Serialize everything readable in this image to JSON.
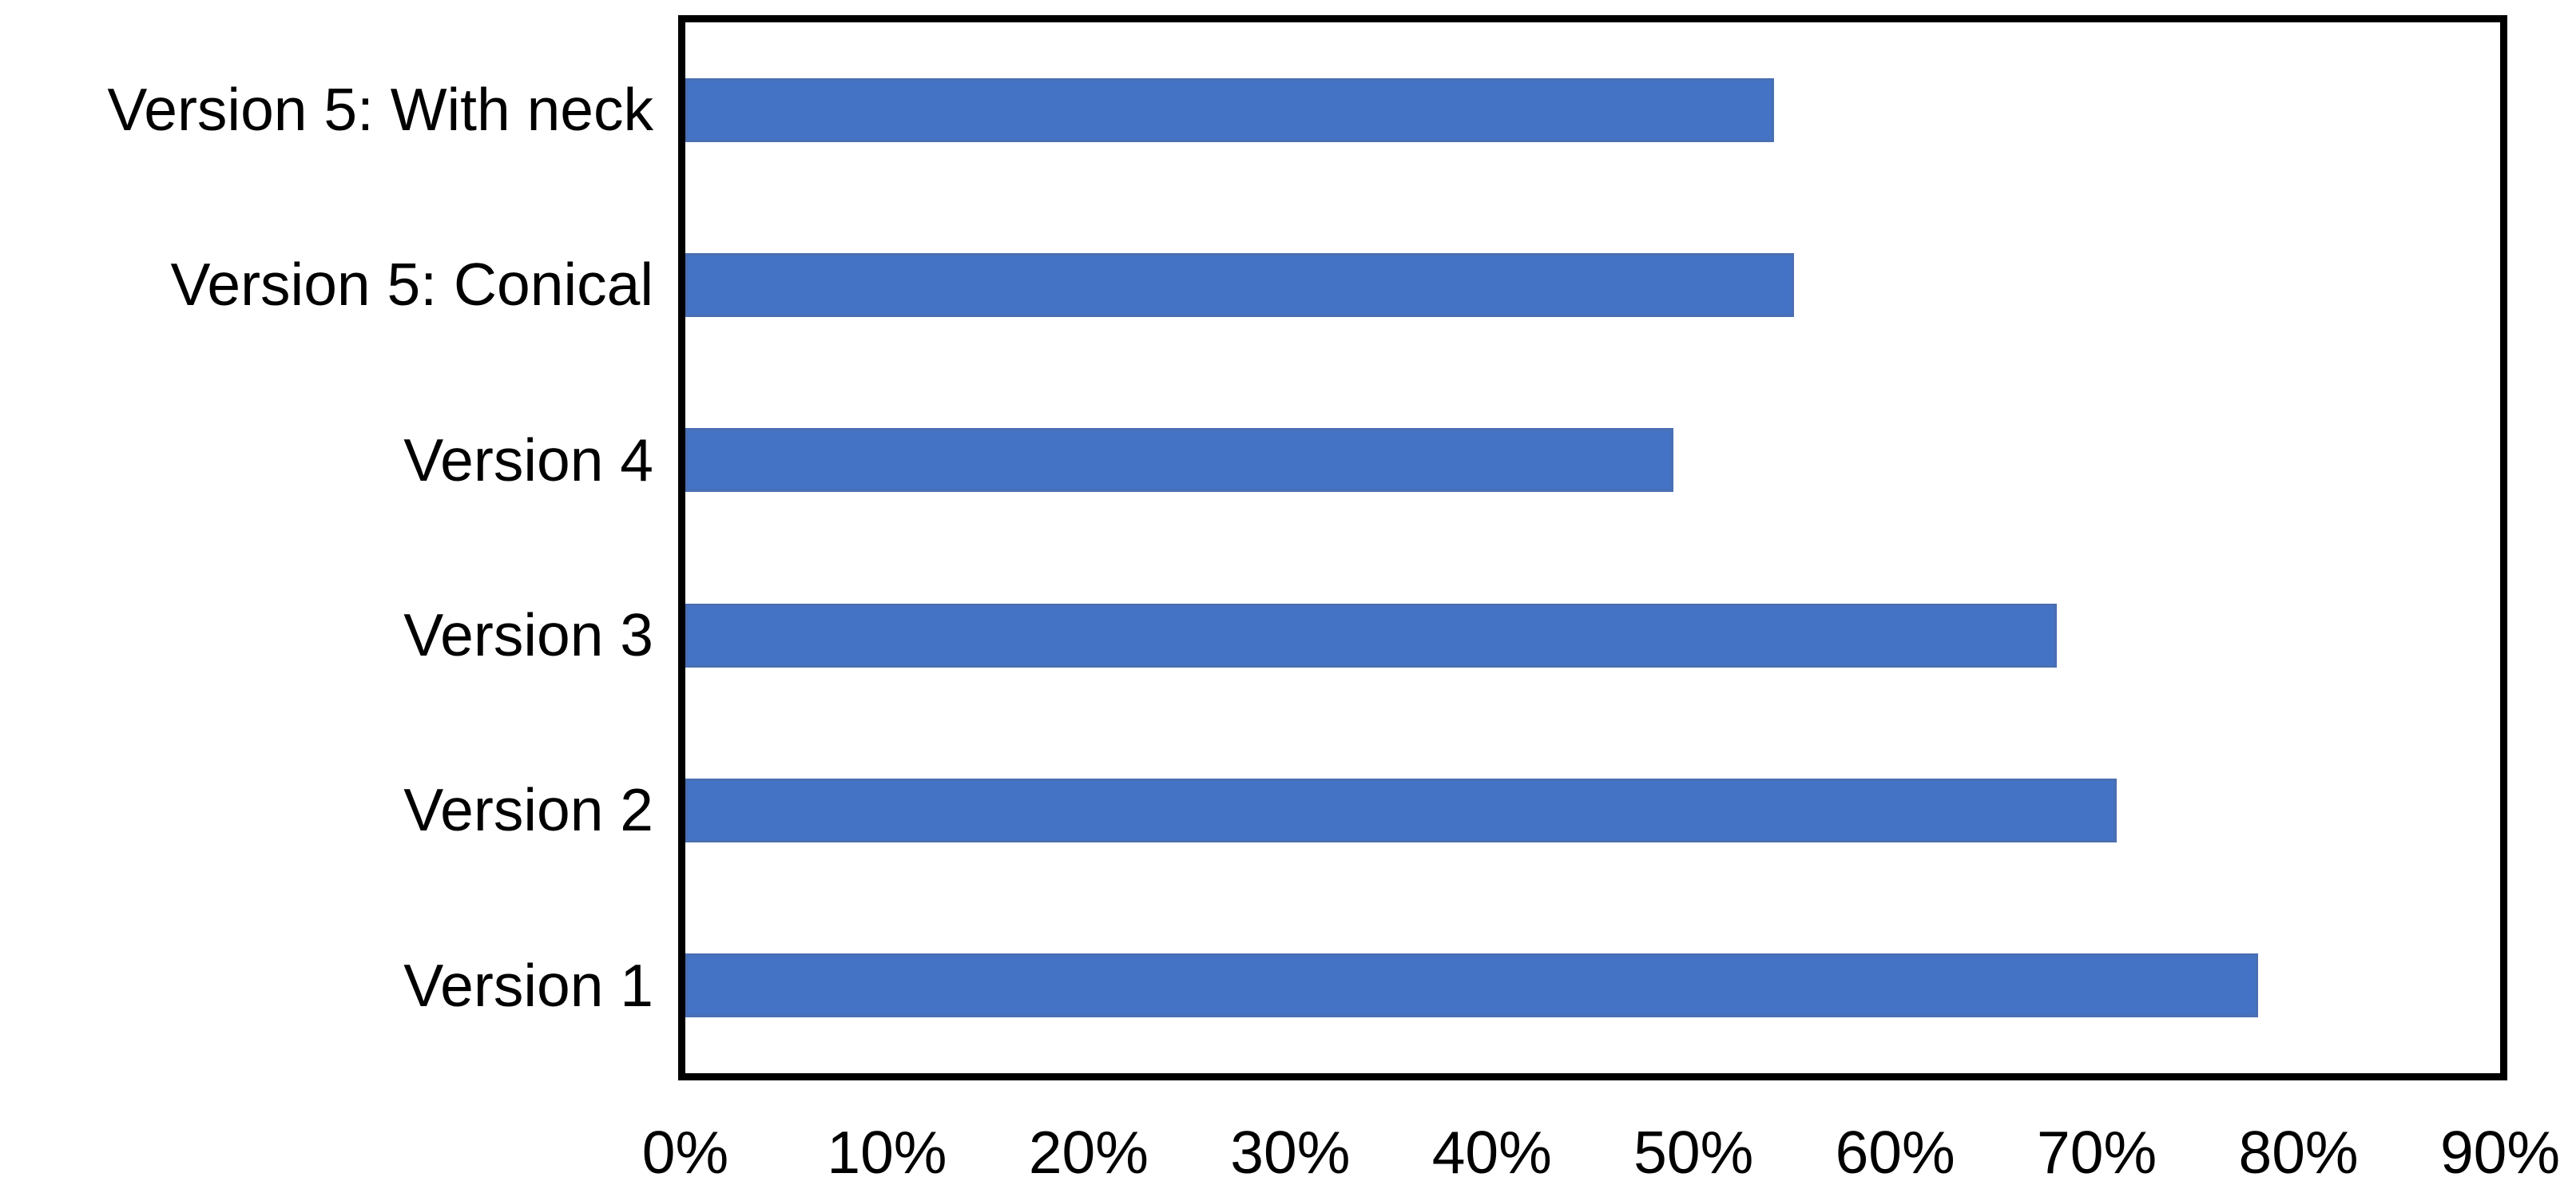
{
  "chart_data": {
    "type": "bar",
    "orientation": "horizontal",
    "title": "",
    "xlabel": "",
    "ylabel": "",
    "categories": [
      "Version 5: With neck",
      "Version 5: Conical",
      "Version 4",
      "Version 3",
      "Version 2",
      "Version 1"
    ],
    "values": [
      54,
      55,
      49,
      68,
      71,
      78
    ],
    "unit": "%",
    "xlim": [
      0,
      90
    ],
    "x_tick_labels": [
      "0%",
      "10%",
      "20%",
      "30%",
      "40%",
      "50%",
      "60%",
      "70%",
      "80%",
      "90%"
    ],
    "grid": false,
    "legend": false
  },
  "colors": {
    "bar": "#4472C4",
    "plot_border": "#000000",
    "background": "#FFFFFF",
    "text": "#000000"
  }
}
